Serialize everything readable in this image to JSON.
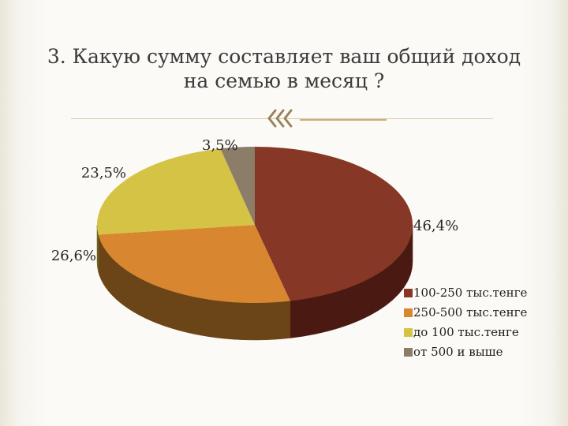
{
  "title": {
    "line1": "3. Какую сумму составляет ваш общий доход",
    "line2": "на семью в месяц ?"
  },
  "ornament_icon": "triple-chevron-left-icon",
  "chart_data": {
    "type": "pie",
    "three_d": true,
    "legend_position": "bottom-right",
    "series": [
      {
        "name": "100-250 тыс.тенге",
        "value": 46.4,
        "label": "46,4%",
        "color": "#863725",
        "side_color": "#4a1a12"
      },
      {
        "name": "250-500 тыс.тенге",
        "value": 26.6,
        "label": "26,6%",
        "color": "#d8862f",
        "side_color": "#6b4418"
      },
      {
        "name": "до 100 тыс.тенге",
        "value": 23.5,
        "label": "23,5%",
        "color": "#d5c346",
        "side_color": "#6a6220"
      },
      {
        "name": "от 500 и выше",
        "value": 3.5,
        "label": "3,5%",
        "color": "#8b7d68",
        "side_color": "#463f35"
      }
    ],
    "labels": [
      "46,4%",
      "26,6%",
      "23,5%",
      "3,5%"
    ],
    "legend": [
      "100-250 тыс.тенге",
      "250-500 тыс.тенге",
      "до 100 тыс.тенге",
      "от 500 и выше"
    ]
  }
}
